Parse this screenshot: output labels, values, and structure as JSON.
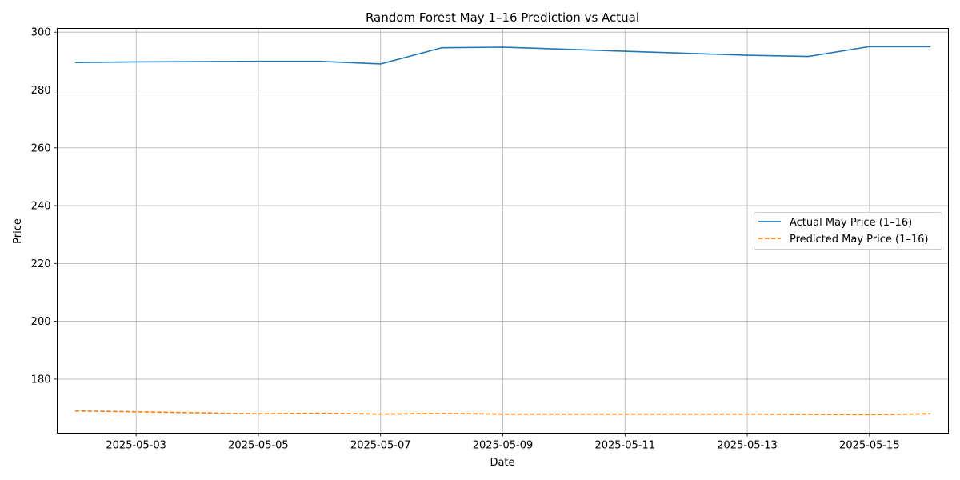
{
  "chart_data": {
    "type": "line",
    "title": "Random Forest May 1–16 Prediction vs Actual",
    "xlabel": "Date",
    "ylabel": "Price",
    "x_range": [
      "2025-05-01T17:00",
      "2025-05-16T07:00"
    ],
    "ylim": [
      161.3,
      301.3
    ],
    "x_ticks": [
      "2025-05-03",
      "2025-05-05",
      "2025-05-07",
      "2025-05-09",
      "2025-05-11",
      "2025-05-13",
      "2025-05-15"
    ],
    "y_ticks": [
      180,
      200,
      220,
      240,
      260,
      280,
      300
    ],
    "grid": true,
    "legend_position": "center-right",
    "x": [
      "2025-05-02",
      "2025-05-03",
      "2025-05-05",
      "2025-05-06",
      "2025-05-07",
      "2025-05-08",
      "2025-05-09",
      "2025-05-11",
      "2025-05-13",
      "2025-05-14",
      "2025-05-15",
      "2025-05-16"
    ],
    "series": [
      {
        "name": "Actual May Price (1–16)",
        "color": "#1f77b4",
        "style": "solid",
        "values": [
          289.5,
          289.7,
          289.9,
          289.9,
          289.0,
          294.6,
          294.8,
          293.4,
          292.0,
          291.6,
          295.0,
          295.0
        ]
      },
      {
        "name": "Predicted May Price (1–16)",
        "color": "#ff7f0e",
        "style": "dashed",
        "values": [
          169.0,
          168.7,
          168.0,
          168.2,
          167.9,
          168.1,
          167.9,
          167.9,
          167.9,
          167.8,
          167.7,
          168.0
        ]
      }
    ]
  }
}
